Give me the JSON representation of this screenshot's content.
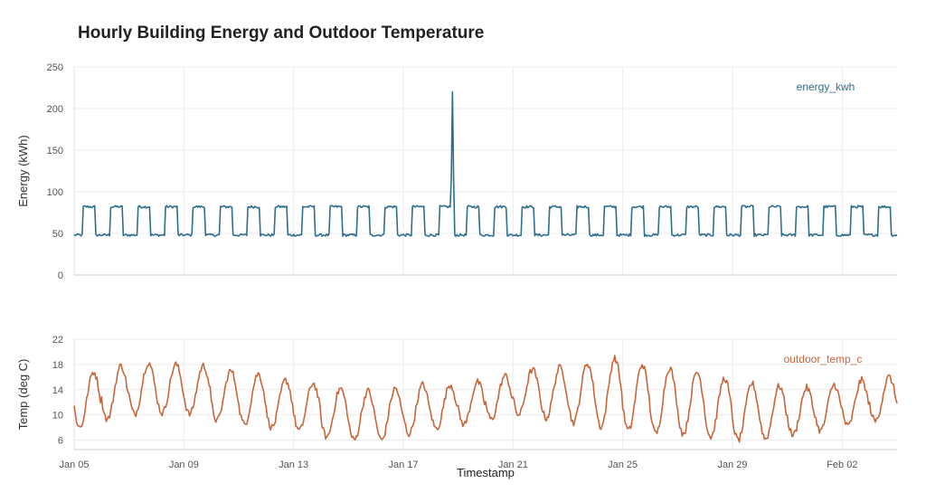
{
  "chart_data": {
    "type": "line",
    "title": "Hourly Building Energy and Outdoor Temperature",
    "xlabel": "Timestamp",
    "x_range": [
      "2026-01-05",
      "2026-02-04"
    ],
    "x_ticks": [
      "Jan 05",
      "Jan 09",
      "Jan 13",
      "Jan 17",
      "Jan 21",
      "Jan 25",
      "Jan 29",
      "Feb 02"
    ],
    "grid": true,
    "colors": {
      "energy": "#2e6f8e",
      "temp": "#c8663a"
    },
    "panels": [
      {
        "ylabel": "Energy (kWh)",
        "ylim": [
          0,
          250
        ],
        "yticks": [
          "0",
          "50",
          "100",
          "150",
          "200",
          "250"
        ],
        "series": [
          {
            "name": "energy_kwh",
            "pattern": "weekday_schedule",
            "base": 48,
            "occupied": 82,
            "occupied_hours": [
              8,
              19
            ],
            "anomaly": {
              "date": "2026-01-18",
              "hour": 19,
              "peak": 220
            }
          }
        ]
      },
      {
        "ylabel": "Temp (deg C)",
        "ylim": [
          4.5,
          22
        ],
        "yticks": [
          "6",
          "10",
          "14",
          "18",
          "22"
        ],
        "series": [
          {
            "name": "outdoor_temp_c",
            "pattern": "diurnal",
            "daily_min": [
              8.0,
              9.3,
              10.1,
              10.3,
              10.1,
              9.1,
              8.5,
              8.0,
              7.5,
              6.5,
              6.0,
              6.0,
              7.0,
              7.8,
              8.5,
              9.3,
              10.0,
              9.5,
              8.8,
              8.1,
              7.5,
              7.0,
              7.0,
              6.5,
              6.0,
              6.2,
              6.8,
              7.5,
              8.2,
              9.0,
              9.5
            ],
            "daily_max": [
              16.8,
              17.8,
              18.3,
              18.0,
              17.8,
              17.0,
              16.5,
              15.5,
              15.0,
              14.2,
              13.8,
              14.2,
              14.8,
              14.8,
              15.2,
              16.2,
              17.2,
              17.5,
              18.2,
              19.0,
              18.0,
              17.5,
              16.8,
              15.8,
              15.0,
              14.6,
              14.3,
              14.8,
              15.5,
              16.0,
              17.0
            ]
          }
        ]
      }
    ]
  }
}
